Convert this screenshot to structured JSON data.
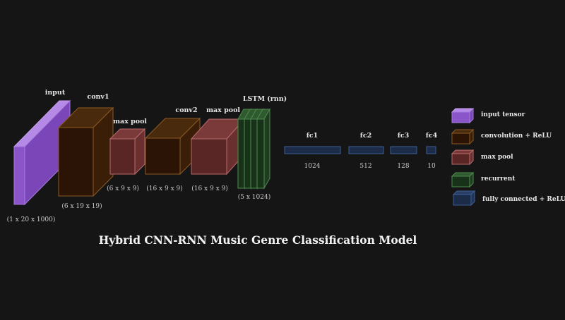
{
  "title": "Hybrid CNN-RNN Music Genre Classification Model",
  "layers": {
    "input": {
      "label": "input",
      "dims": "(1 x 20 x 1000)"
    },
    "conv1": {
      "label": "conv1",
      "dims": "(6 x 19 x 19)"
    },
    "pool1": {
      "label": "max pool",
      "dims": "(6 x 9 x 9)"
    },
    "conv2": {
      "label": "conv2",
      "dims": "(16 x 9 x 9)"
    },
    "pool2": {
      "label": "max pool",
      "dims": "(16 x 9 x 9)"
    },
    "lstm": {
      "label": "LSTM (rnn)",
      "dims": "(5 x 1024)"
    },
    "fc1": {
      "label": "fc1",
      "size": "1024"
    },
    "fc2": {
      "label": "fc2",
      "size": "512"
    },
    "fc3": {
      "label": "fc3",
      "size": "128"
    },
    "fc4": {
      "label": "fc4",
      "size": "10"
    }
  },
  "legend": {
    "input": "input tensor",
    "conv": "convolution + ReLU",
    "pool": "max pool",
    "recurrent": "recurrent",
    "fc": "fully connected + ReLU"
  },
  "colors": {
    "background": "#151515",
    "input": "#8a55c8",
    "conv": "#2b1305",
    "pool": "#5a2525",
    "recurrent": "#173218",
    "fc": "#1b2b48"
  }
}
